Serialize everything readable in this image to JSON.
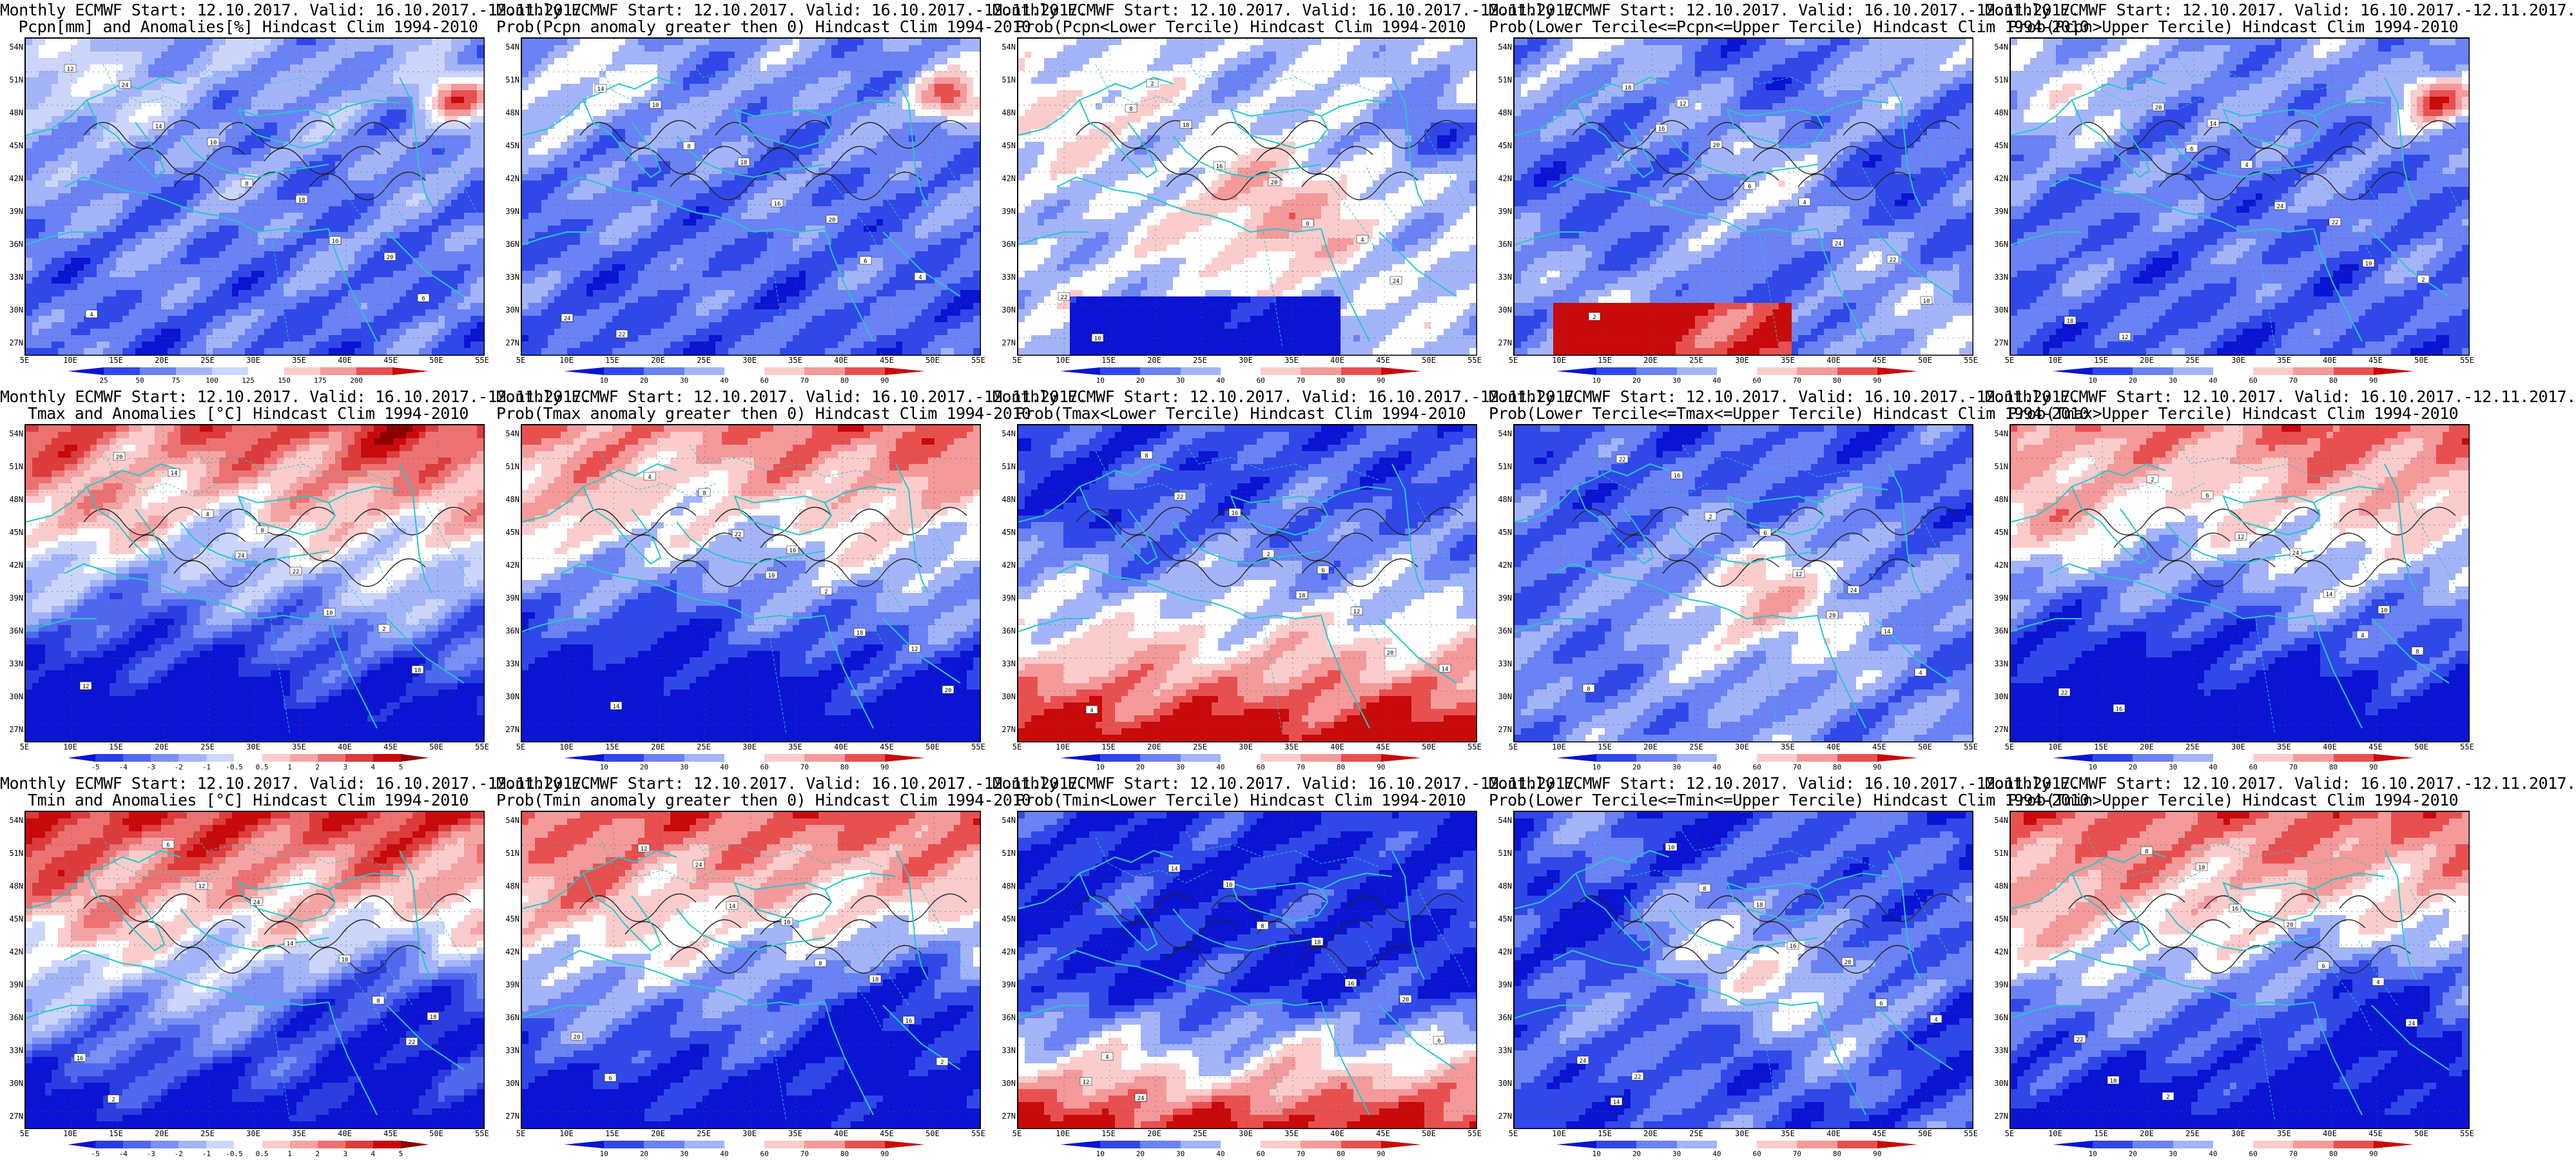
{
  "lat_labels": [
    "54N",
    "51N",
    "48N",
    "45N",
    "42N",
    "39N",
    "36N",
    "33N",
    "30N",
    "27N"
  ],
  "lon_labels": [
    "5E",
    "10E",
    "15E",
    "20E",
    "25E",
    "30E",
    "35E",
    "40E",
    "45E",
    "50E",
    "55E"
  ],
  "scales": {
    "anom_pcpn": {
      "ticks": [
        "25",
        "50",
        "75",
        "100",
        "125",
        "150",
        "175",
        "200"
      ],
      "colors": [
        "#0a14d2",
        "#3048e8",
        "#6a82f4",
        "#a4b4f8",
        "#ccd6fb",
        "#ffffff",
        "#fbcccc",
        "#f49a9a",
        "#e85050",
        "#c80a0a"
      ]
    },
    "anom_temp": {
      "ticks": [
        "-5",
        "-4",
        "-3",
        "-2",
        "-1",
        "-0.5",
        "0.5",
        "1",
        "2",
        "3",
        "4",
        "5"
      ],
      "colors": [
        "#0a14d2",
        "#2a3ee0",
        "#5068ee",
        "#7a90f4",
        "#a4b4f8",
        "#ccd6fb",
        "#ffffff",
        "#fbcccc",
        "#f4a4a4",
        "#ec7272",
        "#dc3c3c",
        "#c80a0a",
        "#8c0000"
      ]
    },
    "prob": {
      "ticks": [
        "10",
        "20",
        "30",
        "40",
        "60",
        "70",
        "80",
        "90"
      ],
      "colors": [
        "#0a14d2",
        "#3048e8",
        "#6a82f4",
        "#a4b4f8",
        "#ffffff",
        "#fbcccc",
        "#f49a9a",
        "#e85050",
        "#c80a0a"
      ]
    }
  },
  "panels": [
    {
      "title1": "Monthly ECMWF Start: 12.10.2017. Valid: 16.10.2017.-12.11.2017.",
      "title2": "Pcpn[mm] and Anomalies[%] Hindcast Clim 1994-2010",
      "scale": "anom_pcpn",
      "pattern": "pcpn_anom"
    },
    {
      "title1": "Monthly ECMWF Start: 12.10.2017. Valid: 16.10.2017.-12.11.2017.",
      "title2": "Prob(Pcpn anomaly greater then 0) Hindcast Clim 1994-2010",
      "scale": "prob",
      "pattern": "pcpn_anom"
    },
    {
      "title1": "Monthly ECMWF Start: 12.10.2017. Valid: 16.10.2017.-12.11.2017.",
      "title2": "Prob(Pcpn<Lower Tercile) Hindcast Clim 1994-2010",
      "scale": "prob",
      "pattern": "pcpn_lower"
    },
    {
      "title1": "Monthly ECMWF Start: 12.10.2017. Valid: 16.10.2017.-12.11.2017.",
      "title2": "Prob(Lower Tercile<=Pcpn<=Upper Tercile) Hindcast Clim 1994-2010",
      "scale": "prob",
      "pattern": "pcpn_middle"
    },
    {
      "title1": "Monthly ECMWF Start: 12.10.2017. Valid: 16.10.2017.-12.11.2017.",
      "title2": "Prob(Pcpn>Upper Tercile) Hindcast Clim 1994-2010",
      "scale": "prob",
      "pattern": "pcpn_anom"
    },
    {
      "title1": "Monthly ECMWF Start: 12.10.2017. Valid: 16.10.2017.-12.11.2017.",
      "title2": "Tmax and Anomalies [°C] Hindcast Clim 1994-2010",
      "scale": "anom_temp",
      "pattern": "tmax_anom"
    },
    {
      "title1": "Monthly ECMWF Start: 12.10.2017. Valid: 16.10.2017.-12.11.2017.",
      "title2": "Prob(Tmax anomaly greater then 0) Hindcast Clim 1994-2010",
      "scale": "prob",
      "pattern": "tmax_anom"
    },
    {
      "title1": "Monthly ECMWF Start: 12.10.2017. Valid: 16.10.2017.-12.11.2017.",
      "title2": "Prob(Tmax<Lower Tercile) Hindcast Clim 1994-2010",
      "scale": "prob",
      "pattern": "tmax_lower"
    },
    {
      "title1": "Monthly ECMWF Start: 12.10.2017. Valid: 16.10.2017.-12.11.2017.",
      "title2": "Prob(Lower Tercile<=Tmax<=Upper Tercile) Hindcast Clim 1994-2010",
      "scale": "prob",
      "pattern": "tmax_middle"
    },
    {
      "title1": "Monthly ECMWF Start: 12.10.2017. Valid: 16.10.2017.-12.11.2017.",
      "title2": "Prob(Tmax>Upper Tercile) Hindcast Clim 1994-2010",
      "scale": "prob",
      "pattern": "tmax_anom"
    },
    {
      "title1": "Monthly ECMWF Start: 12.10.2017. Valid: 16.10.2017.-12.11.2017.",
      "title2": "Tmin and Anomalies [°C] Hindcast Clim 1994-2010",
      "scale": "anom_temp",
      "pattern": "tmin_anom"
    },
    {
      "title1": "Monthly ECMWF Start: 12.10.2017. Valid: 16.10.2017.-12.11.2017.",
      "title2": "Prob(Tmin anomaly greater then 0) Hindcast Clim 1994-2010",
      "scale": "prob",
      "pattern": "tmin_anom"
    },
    {
      "title1": "Monthly ECMWF Start: 12.10.2017. Valid: 16.10.2017.-12.11.2017.",
      "title2": "Prob(Tmin<Lower Tercile) Hindcast Clim 1994-2010",
      "scale": "prob",
      "pattern": "tmin_lower"
    },
    {
      "title1": "Monthly ECMWF Start: 12.10.2017. Valid: 16.10.2017.-12.11.2017.",
      "title2": "Prob(Lower Tercile<=Tmin<=Upper Tercile) Hindcast Clim 1994-2010",
      "scale": "prob",
      "pattern": "tmin_middle"
    },
    {
      "title1": "Monthly ECMWF Start: 12.10.2017. Valid: 16.10.2017.-12.11.2017.",
      "title2": "Prob(Tmin>Upper Tercile) Hindcast Clim 1994-2010",
      "scale": "prob",
      "pattern": "tmin_anom"
    }
  ]
}
